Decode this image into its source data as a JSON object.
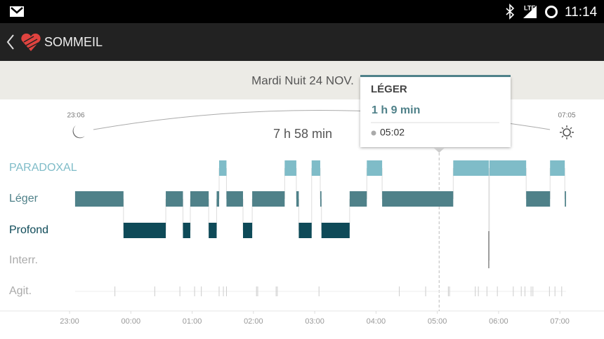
{
  "status_bar": {
    "network": "LTE",
    "time": "11:14"
  },
  "app_bar": {
    "title": "SOMMEIL"
  },
  "header": {
    "date": "Mardi Nuit 24 NOV."
  },
  "summary": {
    "bedtime": "23:06",
    "wake_time": "07:05",
    "duration": "7 h 58 min"
  },
  "chart_data": {
    "type": "timeline",
    "xlim": [
      21.865,
      31.72
    ],
    "xticks": [
      {
        "value": 23,
        "label": "23:00"
      },
      {
        "value": 24,
        "label": "00:00"
      },
      {
        "value": 25,
        "label": "01:00"
      },
      {
        "value": 26,
        "label": "02:00"
      },
      {
        "value": 27,
        "label": "03:00"
      },
      {
        "value": 28,
        "label": "04:00"
      },
      {
        "value": 29,
        "label": "05:00"
      },
      {
        "value": 30,
        "label": "06:00"
      },
      {
        "value": 31,
        "label": "07:00"
      }
    ],
    "series": [
      {
        "name": "PARADOXAL",
        "color": "#7fbcc8",
        "segments": [
          [
            25.44,
            25.56
          ],
          [
            26.51,
            26.7
          ],
          [
            26.95,
            27.09
          ],
          [
            27.85,
            28.1
          ],
          [
            29.26,
            29.84
          ],
          [
            29.85,
            30.45
          ],
          [
            30.84,
            31.08
          ]
        ]
      },
      {
        "name": "Léger",
        "color": "#4f8189",
        "segments": [
          [
            23.09,
            23.88
          ],
          [
            24.57,
            24.85
          ],
          [
            24.97,
            25.27
          ],
          [
            25.4,
            25.44
          ],
          [
            25.56,
            25.83
          ],
          [
            25.98,
            26.51
          ],
          [
            26.7,
            26.74
          ],
          [
            27.09,
            27.11
          ],
          [
            27.57,
            27.85
          ],
          [
            28.1,
            29.26
          ],
          [
            30.45,
            30.84
          ],
          [
            31.08,
            31.1
          ]
        ]
      },
      {
        "name": "Profond",
        "color": "#0e4a58",
        "segments": [
          [
            23.88,
            24.57
          ],
          [
            24.85,
            24.97
          ],
          [
            25.27,
            25.4
          ],
          [
            25.83,
            25.98
          ],
          [
            26.74,
            26.95
          ],
          [
            27.11,
            27.57
          ]
        ]
      },
      {
        "name": "Interr.",
        "color": "#888888",
        "segments": [
          [
            29.84,
            29.85
          ]
        ]
      },
      {
        "name": "Agit.",
        "color": "#cccccc",
        "times": [
          23.74,
          24.39,
          24.8,
          25.04,
          25.15,
          25.44,
          25.51,
          25.56,
          26.05,
          26.07,
          26.37,
          26.39,
          27.07,
          28.38,
          28.81,
          29.18,
          29.2,
          29.62,
          29.67,
          29.81,
          29.98,
          30.24,
          30.37,
          30.43,
          30.53,
          30.56,
          30.83,
          30.92,
          31.03
        ]
      }
    ],
    "tooltip": {
      "title": "LÉGER",
      "duration": "1 h 9 min",
      "time": {
        "value": 29.03,
        "label": "05:02"
      }
    }
  }
}
